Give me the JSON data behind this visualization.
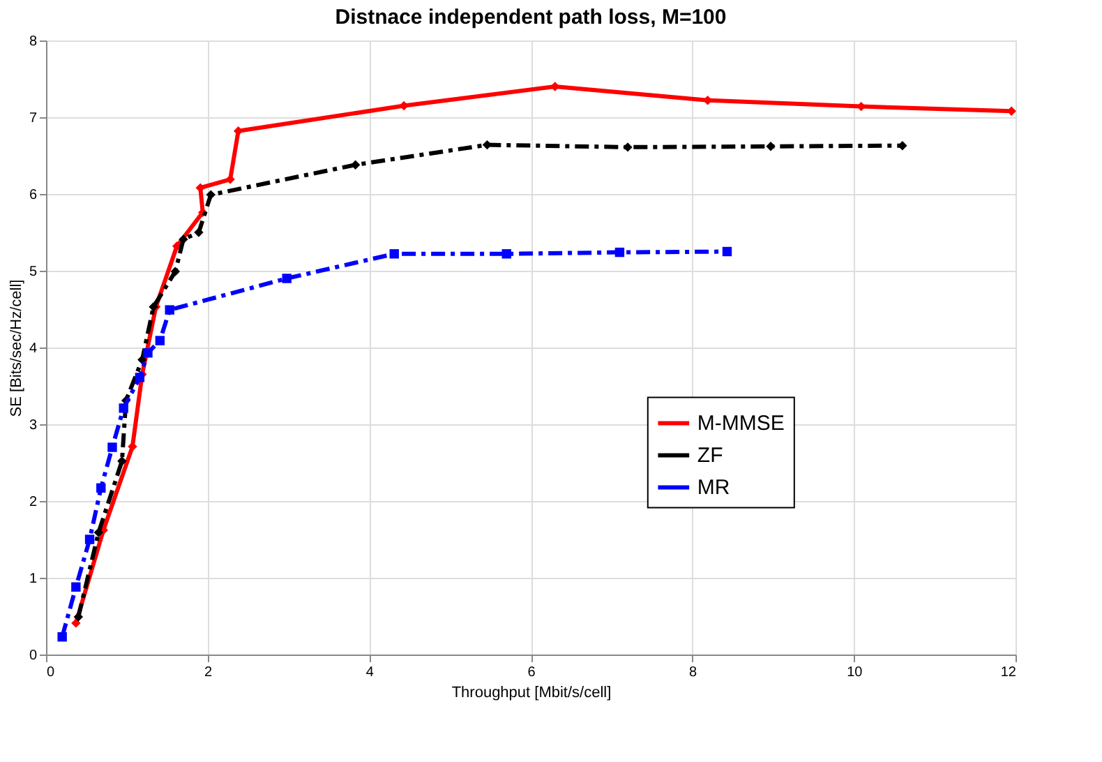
{
  "chart_data": {
    "type": "line",
    "title": "Distnace independent path loss, M=100",
    "xlabel": "Throughput [Mbit/s/cell]",
    "ylabel": "SE [Bits/sec/Hz/cell]",
    "series": [
      {
        "name": "M-MMSE",
        "color": "#ff0000",
        "marker": "diamond",
        "line_style": "solid",
        "x": [
          0.37,
          0.71,
          1.07,
          1.19,
          1.36,
          1.62,
          1.94,
          1.91,
          2.28,
          2.38,
          4.43,
          6.3,
          8.19,
          10.09,
          11.95
        ],
        "values": [
          0.41,
          1.62,
          2.71,
          3.65,
          4.53,
          5.32,
          5.76,
          6.08,
          6.19,
          6.82,
          7.15,
          7.4,
          7.22,
          7.14,
          7.08
        ]
      },
      {
        "name": "ZF",
        "color": "#000000",
        "marker": "diamond",
        "line_style": "dashdot",
        "x": [
          0.4,
          0.65,
          0.94,
          0.99,
          1.19,
          1.33,
          1.6,
          1.7,
          1.89,
          2.04,
          3.83,
          5.46,
          7.2,
          8.97,
          10.6
        ],
        "values": [
          0.49,
          1.59,
          2.52,
          3.31,
          3.84,
          4.53,
          4.99,
          5.41,
          5.5,
          5.99,
          6.38,
          6.64,
          6.61,
          6.62,
          6.63
        ]
      },
      {
        "name": "MR",
        "color": "#0000ff",
        "marker": "square",
        "line_style": "dashdot",
        "x": [
          0.2,
          0.37,
          0.54,
          0.68,
          0.82,
          0.96,
          1.16,
          1.26,
          1.41,
          1.53,
          2.98,
          4.31,
          5.7,
          7.1,
          8.43
        ],
        "values": [
          0.23,
          0.88,
          1.5,
          2.17,
          2.7,
          3.21,
          3.61,
          3.93,
          4.09,
          4.49,
          4.9,
          5.22,
          5.22,
          5.24,
          5.25
        ]
      }
    ],
    "xlim": [
      0,
      12
    ],
    "xticks": [
      0,
      2,
      4,
      6,
      8,
      10,
      12
    ],
    "ylim": [
      0,
      8
    ],
    "yticks": [
      0,
      1,
      2,
      3,
      4,
      5,
      6,
      7,
      8
    ],
    "grid": true,
    "legend": "right"
  }
}
